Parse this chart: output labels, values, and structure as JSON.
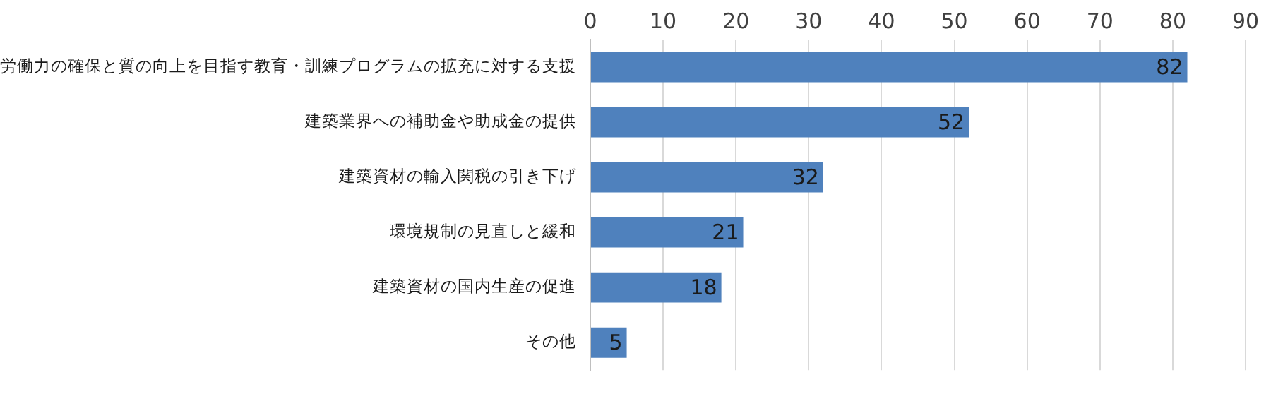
{
  "chart_data": {
    "type": "bar",
    "orientation": "horizontal",
    "categories": [
      "労働力の確保と質の向上を目指す教育・訓練プログラムの拡充に対する支援",
      "建築業界への補助金や助成金の提供",
      "建築資材の輸入関税の引き下げ",
      "環境規制の見直しと緩和",
      "建築資材の国内生産の促進",
      "その他"
    ],
    "values": [
      82,
      52,
      32,
      21,
      18,
      5
    ],
    "color": "#4f81bd",
    "xlim": [
      0,
      90
    ],
    "xticks": [
      0,
      10,
      20,
      30,
      40,
      50,
      60,
      70,
      80,
      90
    ],
    "grid": "x",
    "data_labels": true,
    "legend": false
  }
}
